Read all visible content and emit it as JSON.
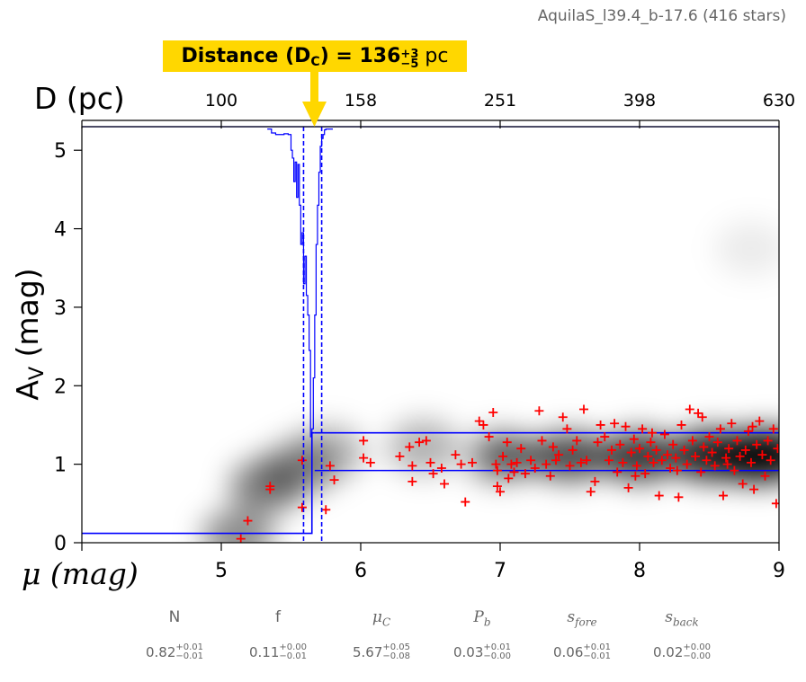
{
  "header": {
    "title": "AquilaS_l39.4_b-17.6 (416 stars)"
  },
  "callout": {
    "label": "Distance (D",
    "sub": "C",
    "eq": ") = 136",
    "value_up": "+3",
    "value_down": "−5",
    "unit": "pc"
  },
  "colors": {
    "model": "#0000ff",
    "stars": "#ff0000",
    "callout": "#ffd700",
    "density": "#000000"
  },
  "chart_data": {
    "type": "scatter",
    "top_axis": {
      "label": "D (pc)",
      "ticks": [
        "100",
        "158",
        "251",
        "398",
        "630"
      ],
      "tick_positions_mu": [
        5,
        6,
        7,
        8,
        9
      ]
    },
    "xlabel": "μ (mag)",
    "ylabel": "A",
    "ylabel_sub": "V",
    "ylabel_unit": " (mag)",
    "xlim": [
      4,
      9
    ],
    "ylim": [
      0,
      5.3
    ],
    "xticks": [
      "5",
      "6",
      "7",
      "8",
      "9"
    ],
    "xtick_values": [
      5,
      6,
      7,
      8,
      9
    ],
    "yticks": [
      "0",
      "1",
      "2",
      "3",
      "4",
      "5"
    ],
    "ytick_values": [
      0,
      1,
      2,
      3,
      4,
      5
    ],
    "model": {
      "av_foreground": 0.12,
      "av_background": 1.16,
      "band_low": 0.92,
      "band_high": 1.4,
      "mu_cloud": 5.67,
      "mu_cloud_lower": 5.59,
      "mu_cloud_upper": 5.72
    },
    "posterior_histogram": {
      "mu": [
        5.33,
        5.36,
        5.39,
        5.45,
        5.48,
        5.5,
        5.51,
        5.52,
        5.53,
        5.54,
        5.55,
        5.56,
        5.57,
        5.58,
        5.59,
        5.6,
        5.61,
        5.62,
        5.63,
        5.64,
        5.65,
        5.66,
        5.67,
        5.68,
        5.69,
        5.7,
        5.71,
        5.72,
        5.73,
        5.74,
        5.75,
        5.77,
        5.8
      ],
      "av": [
        5.27,
        5.22,
        5.2,
        5.21,
        5.2,
        5.0,
        4.9,
        4.6,
        4.85,
        4.4,
        4.82,
        4.3,
        3.8,
        3.95,
        3.3,
        3.65,
        3.15,
        2.9,
        2.45,
        1.35,
        1.45,
        2.1,
        2.9,
        3.8,
        4.3,
        4.72,
        5.05,
        5.15,
        5.2,
        5.26,
        5.27,
        5.27,
        5.27
      ]
    },
    "density_blobs": [
      {
        "mu": 5.12,
        "av": 0.08,
        "strength": 0.45
      },
      {
        "mu": 5.32,
        "av": 0.72,
        "strength": 0.5
      },
      {
        "mu": 5.55,
        "av": 0.95,
        "strength": 0.4
      },
      {
        "mu": 5.77,
        "av": 1.15,
        "strength": 0.3
      },
      {
        "mu": 6.45,
        "av": 1.22,
        "strength": 0.3
      },
      {
        "mu": 7.0,
        "av": 1.1,
        "strength": 0.35
      },
      {
        "mu": 7.5,
        "av": 1.1,
        "strength": 0.45
      },
      {
        "mu": 8.0,
        "av": 1.1,
        "strength": 0.6
      },
      {
        "mu": 8.5,
        "av": 1.12,
        "strength": 0.75
      },
      {
        "mu": 8.8,
        "av": 1.1,
        "strength": 0.85
      },
      {
        "mu": 8.95,
        "av": 1.12,
        "strength": 0.8
      },
      {
        "mu": 8.8,
        "av": 3.75,
        "strength": 0.08
      }
    ],
    "stars": [
      [
        5.14,
        0.05
      ],
      [
        5.19,
        0.28
      ],
      [
        5.35,
        0.72
      ],
      [
        5.35,
        0.68
      ],
      [
        5.58,
        1.05
      ],
      [
        5.58,
        0.45
      ],
      [
        5.75,
        0.42
      ],
      [
        5.78,
        0.98
      ],
      [
        5.81,
        0.8
      ],
      [
        6.02,
        1.3
      ],
      [
        6.02,
        1.08
      ],
      [
        6.07,
        1.02
      ],
      [
        6.28,
        1.1
      ],
      [
        6.35,
        1.22
      ],
      [
        6.37,
        0.98
      ],
      [
        6.37,
        0.78
      ],
      [
        6.42,
        1.28
      ],
      [
        6.47,
        1.3
      ],
      [
        6.5,
        1.02
      ],
      [
        6.52,
        0.88
      ],
      [
        6.58,
        0.95
      ],
      [
        6.6,
        0.75
      ],
      [
        6.68,
        1.12
      ],
      [
        6.72,
        1.0
      ],
      [
        6.75,
        0.52
      ],
      [
        6.8,
        1.02
      ],
      [
        6.85,
        1.55
      ],
      [
        6.88,
        1.5
      ],
      [
        6.92,
        1.35
      ],
      [
        6.95,
        1.66
      ],
      [
        6.97,
        1.0
      ],
      [
        6.98,
        0.72
      ],
      [
        6.98,
        0.92
      ],
      [
        7.0,
        0.65
      ],
      [
        7.02,
        1.1
      ],
      [
        7.05,
        1.28
      ],
      [
        7.06,
        0.82
      ],
      [
        7.08,
        1.0
      ],
      [
        7.1,
        0.9
      ],
      [
        7.12,
        1.02
      ],
      [
        7.15,
        1.2
      ],
      [
        7.18,
        0.88
      ],
      [
        7.22,
        1.05
      ],
      [
        7.25,
        0.95
      ],
      [
        7.28,
        1.68
      ],
      [
        7.3,
        1.3
      ],
      [
        7.33,
        1.0
      ],
      [
        7.36,
        0.85
      ],
      [
        7.38,
        1.22
      ],
      [
        7.4,
        1.05
      ],
      [
        7.42,
        1.12
      ],
      [
        7.45,
        1.6
      ],
      [
        7.48,
        1.45
      ],
      [
        7.5,
        0.98
      ],
      [
        7.52,
        1.18
      ],
      [
        7.55,
        1.3
      ],
      [
        7.58,
        1.02
      ],
      [
        7.6,
        1.7
      ],
      [
        7.62,
        1.05
      ],
      [
        7.65,
        0.65
      ],
      [
        7.68,
        0.78
      ],
      [
        7.7,
        1.28
      ],
      [
        7.72,
        1.5
      ],
      [
        7.75,
        1.35
      ],
      [
        7.78,
        1.05
      ],
      [
        7.8,
        1.18
      ],
      [
        7.82,
        1.52
      ],
      [
        7.84,
        0.9
      ],
      [
        7.86,
        1.25
      ],
      [
        7.88,
        1.02
      ],
      [
        7.9,
        1.48
      ],
      [
        7.92,
        0.7
      ],
      [
        7.94,
        1.15
      ],
      [
        7.96,
        1.32
      ],
      [
        7.98,
        0.98
      ],
      [
        8.0,
        1.2
      ],
      [
        8.02,
        1.45
      ],
      [
        8.04,
        0.88
      ],
      [
        8.06,
        1.1
      ],
      [
        8.08,
        1.28
      ],
      [
        8.1,
        1.02
      ],
      [
        8.12,
        1.18
      ],
      [
        8.14,
        0.6
      ],
      [
        8.16,
        1.05
      ],
      [
        8.18,
        1.38
      ],
      [
        8.2,
        1.12
      ],
      [
        8.22,
        0.95
      ],
      [
        8.24,
        1.25
      ],
      [
        8.26,
        1.08
      ],
      [
        8.28,
        0.58
      ],
      [
        8.3,
        1.5
      ],
      [
        8.32,
        1.18
      ],
      [
        8.34,
        1.0
      ],
      [
        8.36,
        1.7
      ],
      [
        8.38,
        1.3
      ],
      [
        8.4,
        1.1
      ],
      [
        8.42,
        1.65
      ],
      [
        8.44,
        0.9
      ],
      [
        8.46,
        1.22
      ],
      [
        8.48,
        1.05
      ],
      [
        8.5,
        1.35
      ],
      [
        8.52,
        1.15
      ],
      [
        8.54,
        0.98
      ],
      [
        8.56,
        1.28
      ],
      [
        8.58,
        1.45
      ],
      [
        8.6,
        0.6
      ],
      [
        8.62,
        1.08
      ],
      [
        8.64,
        1.2
      ],
      [
        8.66,
        1.52
      ],
      [
        8.68,
        0.92
      ],
      [
        8.7,
        1.3
      ],
      [
        8.72,
        1.1
      ],
      [
        8.74,
        0.75
      ],
      [
        8.76,
        1.18
      ],
      [
        8.78,
        1.42
      ],
      [
        8.8,
        1.02
      ],
      [
        8.82,
        0.68
      ],
      [
        8.84,
        1.25
      ],
      [
        8.86,
        1.55
      ],
      [
        8.88,
        1.12
      ],
      [
        8.9,
        0.85
      ],
      [
        8.92,
        1.3
      ],
      [
        8.94,
        1.05
      ],
      [
        8.96,
        1.45
      ],
      [
        8.98,
        0.5
      ],
      [
        8.99,
        1.2
      ],
      [
        7.97,
        0.85
      ],
      [
        8.09,
        1.4
      ],
      [
        8.27,
        0.92
      ],
      [
        8.45,
        1.6
      ],
      [
        8.63,
        1.0
      ],
      [
        8.81,
        1.48
      ]
    ]
  },
  "params": [
    {
      "name": "N",
      "italic": false,
      "value": "0.82",
      "up": "+0.01",
      "down": "−0.01"
    },
    {
      "name": "f",
      "italic": false,
      "value": "0.11",
      "up": "+0.00",
      "down": "−0.01"
    },
    {
      "name": "μ",
      "sub": "C",
      "italic": true,
      "value": "5.67",
      "up": "+0.05",
      "down": "−0.08"
    },
    {
      "name": "P",
      "sub": "b",
      "italic": true,
      "value": "0.03",
      "up": "+0.01",
      "down": "−0.00"
    },
    {
      "name": "s",
      "sub": "fore",
      "italic": true,
      "value": "0.06",
      "up": "+0.01",
      "down": "−0.01"
    },
    {
      "name": "s",
      "sub": "back",
      "italic": true,
      "value": "0.02",
      "up": "+0.00",
      "down": "−0.00"
    }
  ]
}
